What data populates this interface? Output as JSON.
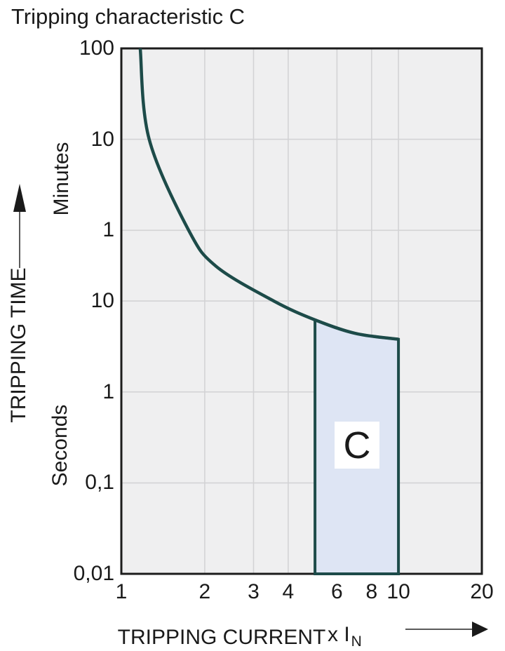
{
  "chart_data": {
    "type": "line",
    "title": "Tripping characteristic C",
    "x_axis": {
      "label": "TRIPPING CURRENT",
      "multiplier_prefix": "x I",
      "multiplier_sub": "N",
      "scale": "log",
      "range": [
        1,
        20
      ],
      "ticks": [
        {
          "v": 1,
          "label": "1"
        },
        {
          "v": 2,
          "label": "2"
        },
        {
          "v": 3,
          "label": "3"
        },
        {
          "v": 4,
          "label": "4"
        },
        {
          "v": 6,
          "label": "6"
        },
        {
          "v": 8,
          "label": "8"
        },
        {
          "v": 10,
          "label": "10"
        },
        {
          "v": 20,
          "label": "20"
        }
      ],
      "gridline_values": [
        2,
        3,
        4,
        6,
        8,
        10
      ]
    },
    "y_axis": {
      "label": "TRIPPING TIME",
      "unit_upper": "Minutes",
      "unit_lower": "Seconds",
      "scale": "log",
      "range_seconds": [
        0.01,
        6000
      ],
      "ticks": [
        {
          "v": 6000,
          "label": "100"
        },
        {
          "v": 600,
          "label": "10"
        },
        {
          "v": 60,
          "label": "1"
        },
        {
          "v": 10,
          "label": "10"
        },
        {
          "v": 1,
          "label": "1"
        },
        {
          "v": 0.1,
          "label": "0,1"
        },
        {
          "v": 0.01,
          "label": "0,01"
        }
      ],
      "gridline_values": [
        600,
        60,
        10,
        1,
        0.1
      ]
    },
    "series": [
      {
        "name": "C characteristic",
        "color": "#1d4b49",
        "points_x_in_t_seconds": [
          [
            1.17,
            6000
          ],
          [
            1.26,
            600
          ],
          [
            1.75,
            60
          ],
          [
            2.2,
            24
          ],
          [
            3.55,
            10
          ],
          [
            5,
            6.2
          ],
          [
            7,
            4.4
          ],
          [
            10,
            3.8
          ]
        ]
      }
    ],
    "region": {
      "label": "C",
      "x_range": [
        5,
        10
      ],
      "fill": "#dee5f4",
      "border": "#1d4b49"
    },
    "colors": {
      "plot_bg": "#efeff0",
      "grid": "#d3d3d5",
      "frame": "#1c1c1c",
      "text": "#1a1a1a",
      "arrow_line": "#5a5a5a",
      "arrow_head": "#1a1a1a"
    },
    "legend": null
  }
}
